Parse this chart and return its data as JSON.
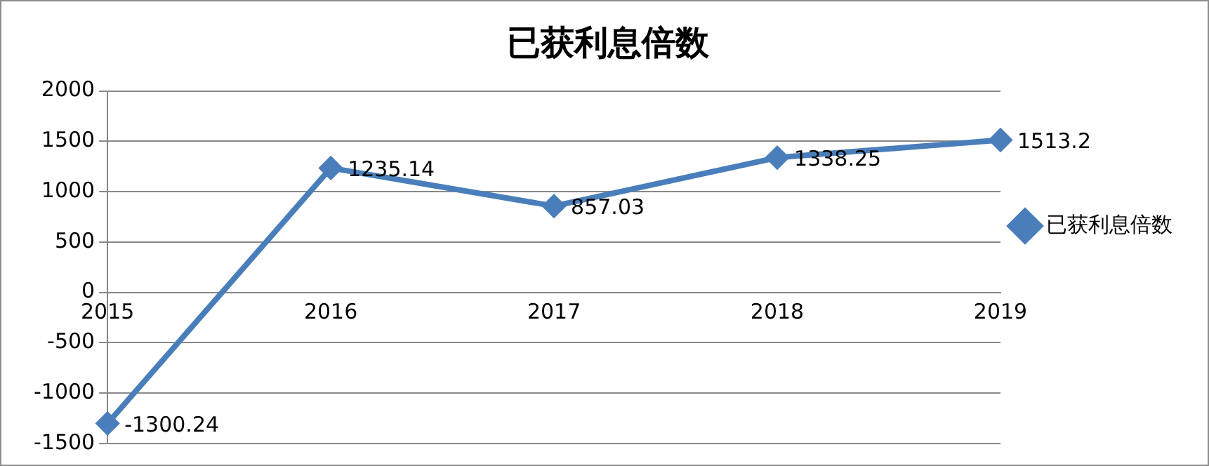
{
  "chart_data": {
    "type": "line",
    "title": "已获利息倍数",
    "categories": [
      "2015",
      "2016",
      "2017",
      "2018",
      "2019"
    ],
    "series": [
      {
        "name": "已获利息倍数",
        "color": "#4a7ebb",
        "values": [
          -1300.24,
          1235.14,
          857.03,
          1338.25,
          1513.2
        ]
      }
    ],
    "ylim": [
      -1500,
      2000
    ],
    "yticks": [
      -1500,
      -1000,
      -500,
      0,
      500,
      1000,
      1500,
      2000
    ],
    "grid": "y",
    "legend": "right",
    "marker": "diamond",
    "line_style": "solid",
    "data_labels": true
  }
}
